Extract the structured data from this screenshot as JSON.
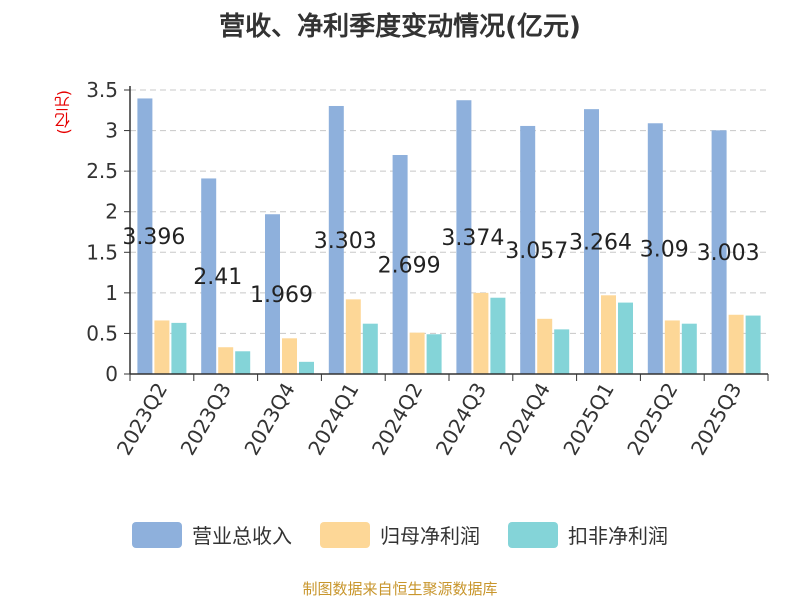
{
  "chart_data": {
    "type": "bar",
    "title": "营收、净利季度变动情况(亿元)",
    "unit_label": "(亿元)",
    "categories": [
      "2023Q2",
      "2023Q3",
      "2023Q4",
      "2024Q1",
      "2024Q2",
      "2024Q3",
      "2024Q4",
      "2025Q1",
      "2025Q2",
      "2025Q3"
    ],
    "series": [
      {
        "name": "营业总收入",
        "color": "#8eb0dc",
        "values": [
          3.396,
          2.41,
          1.969,
          3.303,
          2.699,
          3.374,
          3.057,
          3.264,
          3.09,
          3.003
        ]
      },
      {
        "name": "归母净利润",
        "color": "#fdd797",
        "values": [
          0.66,
          0.33,
          0.44,
          0.92,
          0.51,
          1.0,
          0.68,
          0.97,
          0.66,
          0.73
        ]
      },
      {
        "name": "扣非净利润",
        "color": "#84d4d8",
        "values": [
          0.63,
          0.28,
          0.15,
          0.62,
          0.49,
          0.94,
          0.55,
          0.88,
          0.62,
          0.72
        ]
      }
    ],
    "data_labels": [
      "3.396",
      "2.41",
      "1.969",
      "3.303",
      "2.699",
      "3.374",
      "3.057",
      "3.264",
      "3.09",
      "3.003"
    ],
    "y_ticks": [
      "0",
      "0.5",
      "1",
      "1.5",
      "2",
      "2.5",
      "3",
      "3.5"
    ],
    "ylim": [
      0,
      3.5
    ],
    "grid": true,
    "legend_position": "bottom"
  },
  "source_text": "制图数据来自恒生聚源数据库"
}
